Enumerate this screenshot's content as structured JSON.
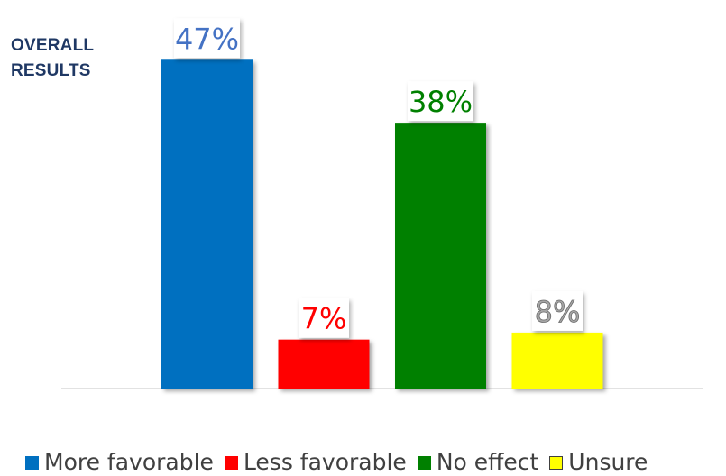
{
  "title_lines": [
    "OVERALL",
    "RESULTS"
  ],
  "chart_data": {
    "type": "bar",
    "title": "OVERALL RESULTS",
    "categories": [
      "More favorable",
      "Less favorable",
      "No effect",
      "Unsure"
    ],
    "values": [
      47,
      7,
      38,
      8
    ],
    "data_labels": [
      "47%",
      "7%",
      "38%",
      "8%"
    ],
    "colors": [
      "#0070c0",
      "#ff0000",
      "#008000",
      "#ffff00"
    ],
    "label_colors": [
      "#4472c4",
      "#ff0000",
      "#008000",
      "#a6a6a6"
    ],
    "ylim": [
      0,
      50
    ],
    "grid": false,
    "legend_position": "bottom",
    "xlabel": "",
    "ylabel": ""
  },
  "legend": [
    {
      "label": "More favorable",
      "color": "#0070c0"
    },
    {
      "label": "Less favorable",
      "color": "#ff0000"
    },
    {
      "label": "No effect",
      "color": "#008000"
    },
    {
      "label": "Unsure",
      "color": "#ffff00"
    }
  ]
}
